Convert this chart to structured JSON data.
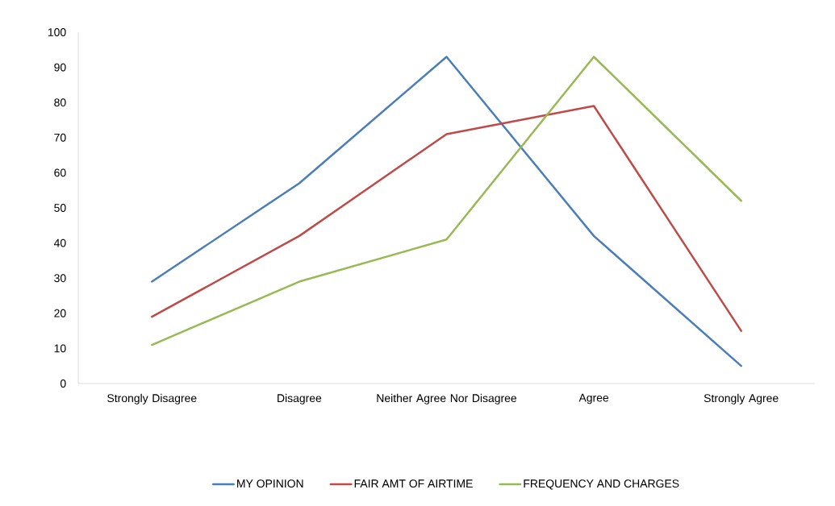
{
  "chart_data": {
    "type": "line",
    "categories": [
      "Strongly Disagree",
      "Disagree",
      "Neither Agree Nor Disagree",
      "Agree",
      "Strongly Agree"
    ],
    "series": [
      {
        "name": "MY OPINION",
        "color": "#4a7ebb",
        "values": [
          29,
          57,
          93,
          42,
          5
        ]
      },
      {
        "name": "FAIR AMT OF AIRTIME",
        "color": "#be4b48",
        "values": [
          19,
          42,
          71,
          79,
          15
        ]
      },
      {
        "name": "FREQUENCY AND CHARGES",
        "color": "#98b954",
        "values": [
          11,
          29,
          41,
          93,
          52
        ]
      }
    ],
    "ylim": [
      0,
      100
    ],
    "yticks": [
      0,
      10,
      20,
      30,
      40,
      50,
      60,
      70,
      80,
      90,
      100
    ],
    "grid": false,
    "legend": "bottom",
    "marker": "none",
    "line_style": "solid"
  }
}
